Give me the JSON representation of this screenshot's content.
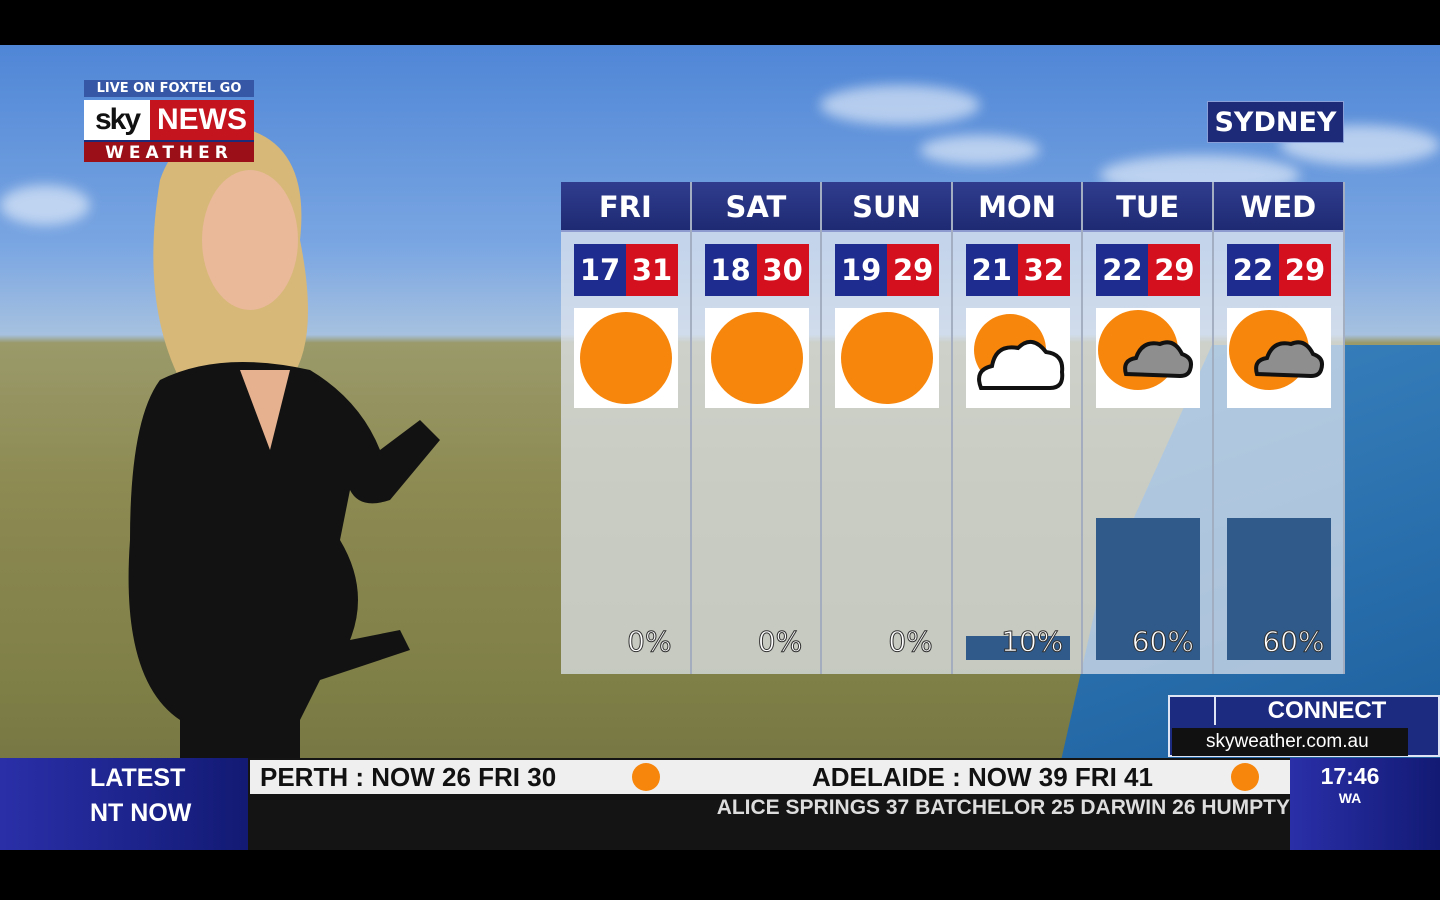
{
  "brand": {
    "top": "LIVE ON FOXTEL GO",
    "sky": "sky",
    "news": "NEWS",
    "sub": "WEATHER"
  },
  "city": "SYDNEY",
  "forecast": [
    {
      "day": "FRI",
      "min": "17",
      "max": "31",
      "icon": "sun",
      "rain": "0%",
      "rain_value": 0
    },
    {
      "day": "SAT",
      "min": "18",
      "max": "30",
      "icon": "sun",
      "rain": "0%",
      "rain_value": 0
    },
    {
      "day": "SUN",
      "min": "19",
      "max": "29",
      "icon": "sun",
      "rain": "0%",
      "rain_value": 0
    },
    {
      "day": "MON",
      "min": "21",
      "max": "32",
      "icon": "partly-cloudy",
      "rain": "10%",
      "rain_value": 10
    },
    {
      "day": "TUE",
      "min": "22",
      "max": "29",
      "icon": "partly-cloudy-grey",
      "rain": "60%",
      "rain_value": 60
    },
    {
      "day": "WED",
      "min": "22",
      "max": "29",
      "icon": "partly-cloudy-grey",
      "rain": "60%",
      "rain_value": 60
    }
  ],
  "connect": {
    "title": "CONNECT",
    "url": "skyweather.com.au"
  },
  "ticker": {
    "latest": "LATEST",
    "nt": "NT NOW",
    "perth": "PERTH :  NOW  26    FRI  30",
    "adelaide": "ADELAIDE :  NOW  39    FRI  41",
    "scroll": "ALICE SPRINGS 37   BATCHELOR 25   DARWIN 26   HUMPTY",
    "time": "17:46",
    "tz": "WA"
  },
  "colors": {
    "min": "#1f2c8f",
    "max": "#d5101e",
    "sun": "#f7860c",
    "header": "#1e2a72"
  }
}
